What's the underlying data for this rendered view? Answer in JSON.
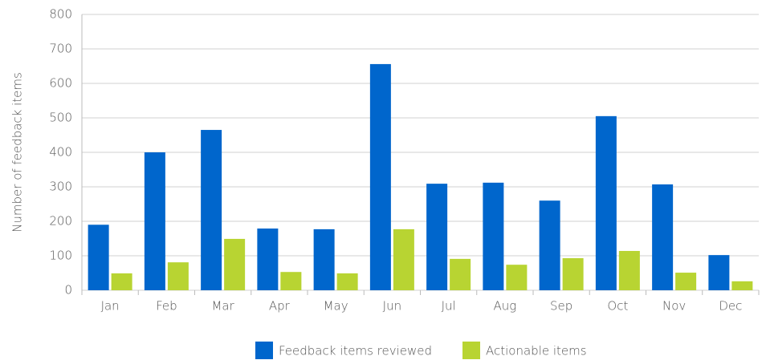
{
  "chart_data": {
    "type": "bar",
    "y_label": "Number of feedback items",
    "categories": [
      "Jan",
      "Feb",
      "Mar",
      "Apr",
      "May",
      "Jun",
      "Jul",
      "Aug",
      "Sep",
      "Oct",
      "Nov",
      "Dec"
    ],
    "series": [
      {
        "name": "Feedback items reviewed",
        "color": "#0066cc",
        "values": [
          190,
          400,
          465,
          179,
          177,
          656,
          309,
          312,
          260,
          505,
          307,
          102
        ]
      },
      {
        "name": "Actionable items",
        "color": "#b8d432",
        "values": [
          49,
          81,
          149,
          53,
          49,
          177,
          91,
          74,
          93,
          114,
          51,
          26
        ]
      }
    ],
    "ylim": [
      0,
      800
    ],
    "yticks": [
      0,
      100,
      200,
      300,
      400,
      500,
      600,
      700,
      800
    ],
    "grid": true
  }
}
